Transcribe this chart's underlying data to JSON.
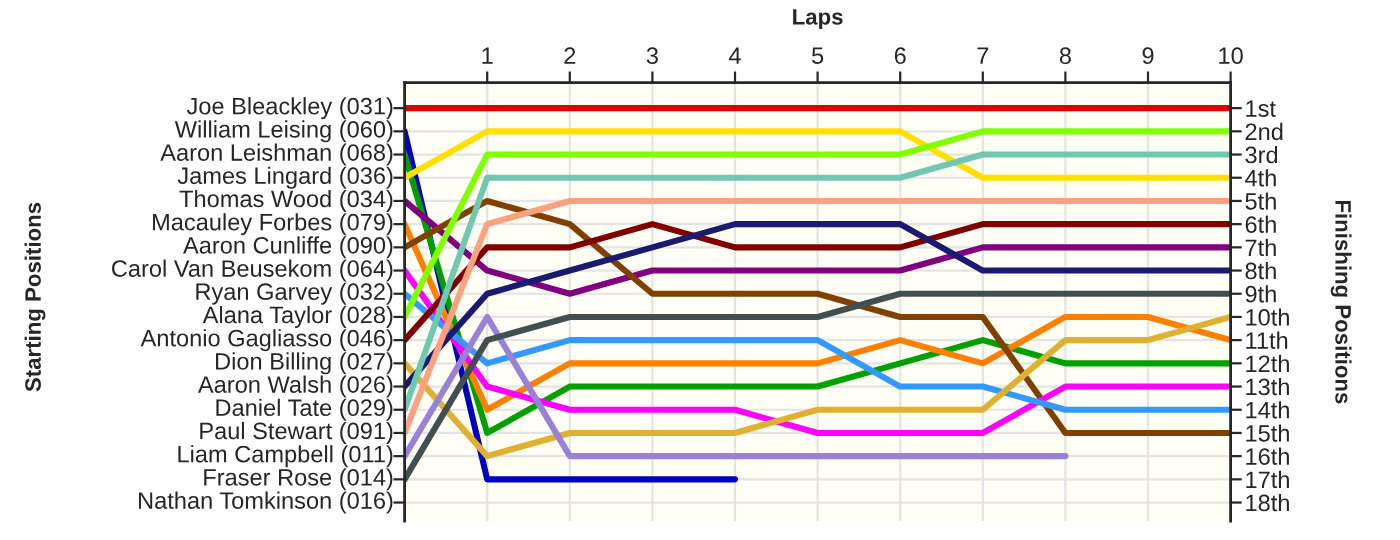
{
  "chart_data": {
    "type": "line",
    "xlabel": "Laps",
    "ylabel": "Finishing Positions",
    "x": [
      0,
      1,
      2,
      3,
      4,
      5,
      6,
      7,
      8,
      9,
      10
    ],
    "xlim": [
      0,
      10
    ],
    "xticks": [
      1,
      2,
      3,
      4,
      5,
      6,
      7,
      8,
      9,
      10
    ],
    "ylim": [
      18.8,
      -0.1
    ],
    "yticks": [
      {
        "value": 1,
        "label": "1st"
      },
      {
        "value": 2,
        "label": "2nd"
      },
      {
        "value": 3,
        "label": "3rd"
      },
      {
        "value": 4,
        "label": "4th"
      },
      {
        "value": 5,
        "label": "5th"
      },
      {
        "value": 6,
        "label": "6th"
      },
      {
        "value": 7,
        "label": "7th"
      },
      {
        "value": 8,
        "label": "8th"
      },
      {
        "value": 9,
        "label": "9th"
      },
      {
        "value": 10,
        "label": "10th"
      },
      {
        "value": 11,
        "label": "11th"
      },
      {
        "value": 12,
        "label": "12th"
      },
      {
        "value": 13,
        "label": "13th"
      },
      {
        "value": 14,
        "label": "14th"
      },
      {
        "value": 15,
        "label": "15th"
      },
      {
        "value": 16,
        "label": "16th"
      },
      {
        "value": 17,
        "label": "17th"
      },
      {
        "value": 18,
        "label": "18th"
      }
    ],
    "annotations": [
      "Starting Positions",
      "Joe Bleackley (031)",
      "William Leising (060)",
      "Aaron Leishman (068)",
      "James Lingard (036)",
      "Thomas Wood (034)",
      "Macauley Forbes (079)",
      "Aaron Cunliffe (090)",
      "Carol Van Beusekom (064)",
      "Ryan Garvey (032)",
      "Alana Taylor (028)",
      "Antonio Gagliasso (046)",
      "Dion Billing (027)",
      "Aaron Walsh (026)",
      "Daniel Tate (029)",
      "Paul Stewart (091)",
      "Liam Campbell (011)",
      "Fraser Rose (014)",
      "Nathan Tomkinson (016)"
    ],
    "grid": true,
    "marker": "none",
    "line_style": "solid",
    "series": [
      {
        "color": "#e00000",
        "values": [
          1,
          1,
          1,
          1,
          1,
          1,
          1,
          1,
          1,
          1,
          1
        ]
      },
      {
        "color": "#0000c0",
        "values": [
          2,
          17,
          17,
          17,
          17,
          null,
          null,
          null,
          null,
          null,
          null
        ]
      },
      {
        "color": "#00a000",
        "values": [
          3,
          15,
          13,
          13,
          13,
          13,
          12,
          11,
          12,
          12,
          12
        ]
      },
      {
        "color": "#ffe000",
        "values": [
          4,
          2,
          2,
          2,
          2,
          2,
          2,
          4,
          4,
          4,
          4
        ]
      },
      {
        "color": "#800080",
        "values": [
          5,
          8,
          9,
          8,
          8,
          8,
          8,
          7,
          7,
          7,
          7
        ]
      },
      {
        "color": "#ff8000",
        "values": [
          6,
          14,
          12,
          12,
          12,
          12,
          11,
          12,
          10,
          10,
          11
        ]
      },
      {
        "color": "#804000",
        "values": [
          7,
          5,
          6,
          9,
          9,
          9,
          10,
          10,
          15,
          15,
          15
        ]
      },
      {
        "color": "#ff00ff",
        "values": [
          8,
          13,
          14,
          14,
          14,
          15,
          15,
          15,
          13,
          13,
          13
        ]
      },
      {
        "color": "#3399ff",
        "values": [
          9,
          12,
          11,
          11,
          11,
          11,
          13,
          13,
          14,
          14,
          14
        ]
      },
      {
        "color": "#80ff00",
        "values": [
          10,
          3,
          3,
          3,
          3,
          3,
          3,
          2,
          2,
          2,
          2
        ]
      },
      {
        "color": "#800000",
        "values": [
          11,
          7,
          7,
          6,
          7,
          7,
          7,
          6,
          6,
          6,
          6
        ]
      },
      {
        "color": "#e0b030",
        "values": [
          12,
          16,
          15,
          15,
          15,
          14,
          14,
          14,
          11,
          11,
          10
        ]
      },
      {
        "color": "#1a1a70",
        "values": [
          13,
          9,
          8,
          7,
          6,
          6,
          6,
          8,
          8,
          8,
          8
        ]
      },
      {
        "color": "#70c8b0",
        "values": [
          14,
          4,
          4,
          4,
          4,
          4,
          4,
          3,
          3,
          3,
          3
        ]
      },
      {
        "color": "#ffa080",
        "values": [
          15,
          6,
          5,
          5,
          5,
          5,
          5,
          5,
          5,
          5,
          5
        ]
      },
      {
        "color": "#9980d8",
        "values": [
          16,
          10,
          16,
          16,
          16,
          16,
          16,
          16,
          16,
          null,
          null
        ]
      },
      {
        "color": "#405050",
        "values": [
          17,
          11,
          10,
          10,
          10,
          10,
          9,
          9,
          9,
          9,
          9
        ]
      }
    ]
  }
}
